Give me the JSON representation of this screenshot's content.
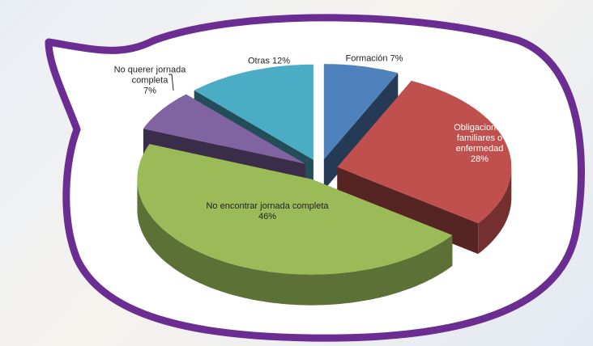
{
  "chart_data": {
    "type": "pie3d",
    "categories": [
      "Formación",
      "Obligaciones familiares o enfermedad",
      "No encontrar jornada completa",
      "No querer jornada completa",
      "Otras"
    ],
    "values": [
      7,
      28,
      46,
      7,
      12
    ],
    "value_labels": [
      "7%",
      "28%",
      "46%",
      "7%",
      "12%"
    ],
    "colors": [
      "#4f81bd",
      "#c0504d",
      "#9bbb59",
      "#8064a2",
      "#4bacc6"
    ]
  }
}
